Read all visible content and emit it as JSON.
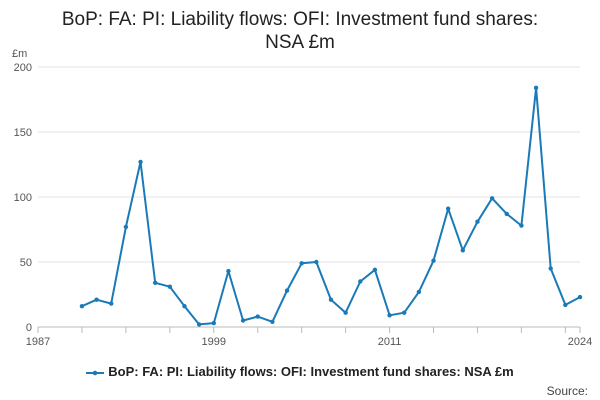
{
  "chart_data": {
    "type": "line",
    "title_lines": [
      "BoP: FA: PI: Liability flows: OFI: Investment fund shares:",
      "NSA £m"
    ],
    "ylabel": "£m",
    "ylim": [
      0,
      200
    ],
    "yticks": [
      0,
      50,
      100,
      150,
      200
    ],
    "xlim": [
      1987,
      2024
    ],
    "xticks": [
      1987,
      1999,
      2011,
      2024
    ],
    "grid": true,
    "legend_position": "bottom",
    "series": [
      {
        "name": "BoP: FA: PI: Liability flows: OFI: Investment fund shares: NSA £m",
        "color": "#1a7ab8",
        "x": [
          1990,
          1991,
          1992,
          1993,
          1994,
          1995,
          1996,
          1997,
          1998,
          1999,
          2000,
          2001,
          2002,
          2003,
          2004,
          2005,
          2006,
          2007,
          2008,
          2009,
          2010,
          2011,
          2012,
          2013,
          2014,
          2015,
          2016,
          2017,
          2018,
          2019,
          2020,
          2021,
          2022,
          2023,
          2024
        ],
        "y": [
          16,
          21,
          18,
          77,
          127,
          34,
          31,
          16,
          2,
          3,
          43,
          5,
          8,
          4,
          28,
          49,
          50,
          21,
          11,
          35,
          44,
          9,
          11,
          27,
          51,
          91,
          59,
          81,
          99,
          87,
          78,
          184,
          45,
          17,
          23
        ]
      }
    ]
  },
  "source_label": "Source:"
}
